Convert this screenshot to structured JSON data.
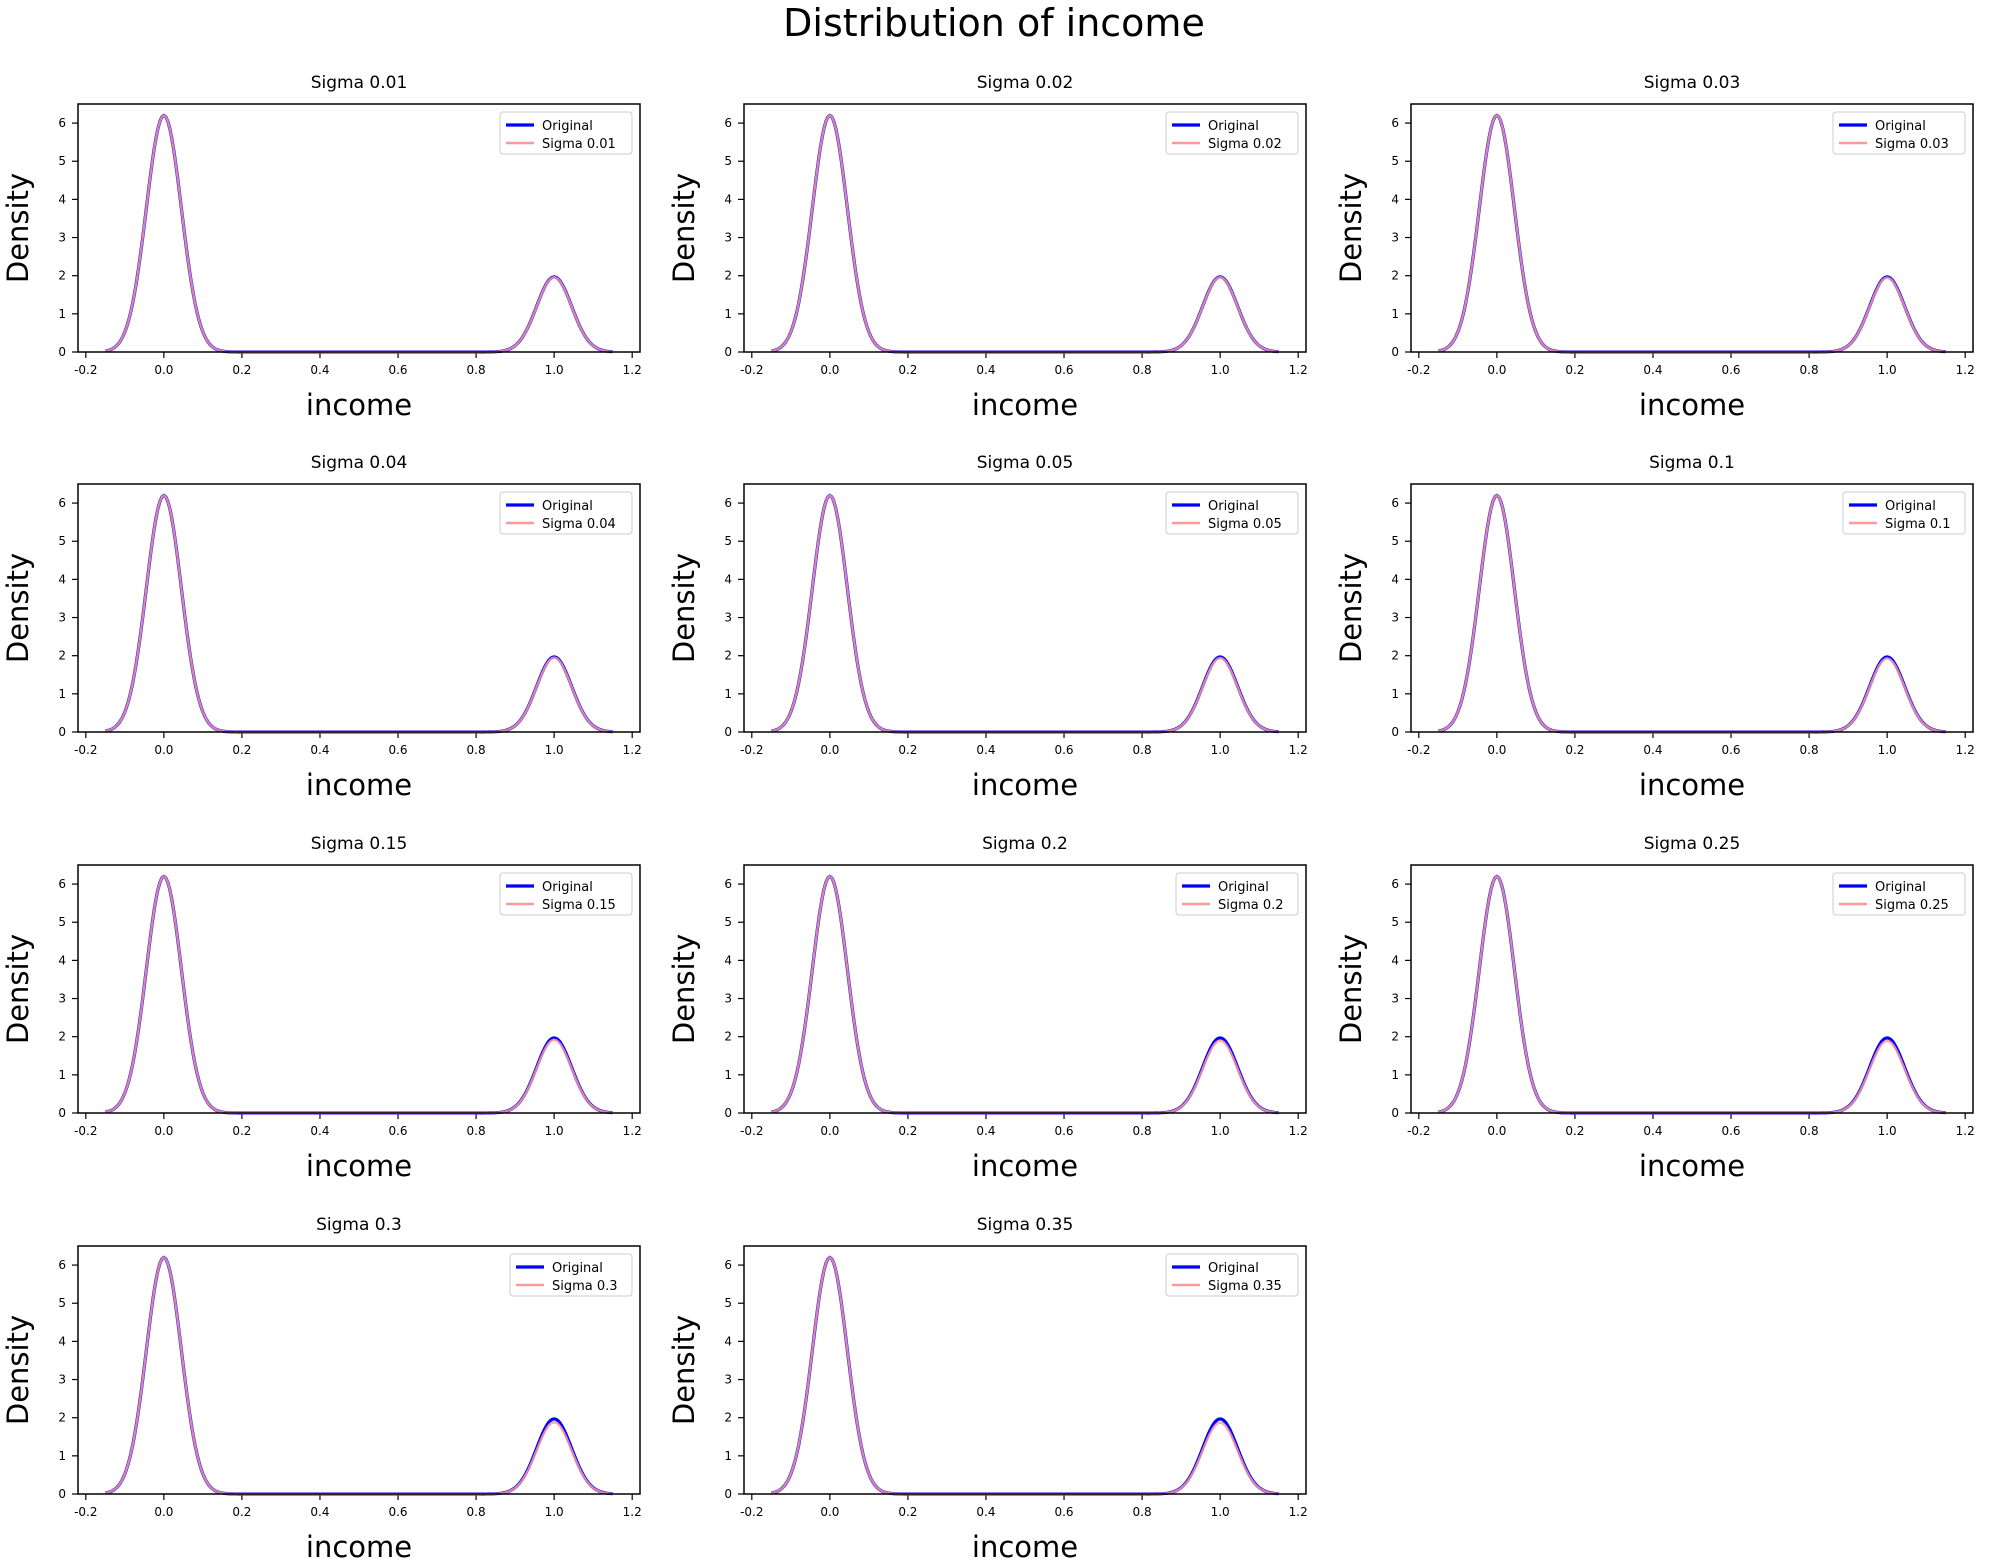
{
  "figure": {
    "suptitle": "Distribution of income"
  },
  "colors": {
    "original": "#0000ff",
    "noisy": "#ff9a9a",
    "frame": "#000000",
    "background": "#ffffff"
  },
  "chart_data": [
    {
      "type": "line",
      "title": "Sigma 0.01",
      "xlabel": "income",
      "ylabel": "Density",
      "xlim": [
        -0.22,
        1.22
      ],
      "ylim": [
        0,
        6.5
      ],
      "xticks": [
        "-0.2",
        "0.0",
        "0.2",
        "0.4",
        "0.6",
        "0.8",
        "1.0",
        "1.2"
      ],
      "yticks": [
        "0",
        "1",
        "2",
        "3",
        "4",
        "5",
        "6"
      ],
      "legend": {
        "position": "upper right",
        "entries": [
          "Original",
          "Sigma 0.01"
        ]
      },
      "series": [
        {
          "name": "Original",
          "peaks": [
            {
              "x": 0.0,
              "density": 6.2
            },
            {
              "x": 1.0,
              "density": 1.97
            }
          ],
          "x_range": [
            -0.15,
            1.15
          ]
        },
        {
          "name": "Sigma 0.01",
          "peaks": [
            {
              "x": 0.0,
              "density": 6.2
            },
            {
              "x": 1.0,
              "density": 1.96
            }
          ],
          "x_range": [
            -0.15,
            1.15
          ]
        }
      ]
    },
    {
      "type": "line",
      "title": "Sigma 0.02",
      "xlabel": "income",
      "ylabel": "Density",
      "xlim": [
        -0.22,
        1.22
      ],
      "ylim": [
        0,
        6.5
      ],
      "xticks": [
        "-0.2",
        "0.0",
        "0.2",
        "0.4",
        "0.6",
        "0.8",
        "1.0",
        "1.2"
      ],
      "yticks": [
        "0",
        "1",
        "2",
        "3",
        "4",
        "5",
        "6"
      ],
      "legend": {
        "position": "upper right",
        "entries": [
          "Original",
          "Sigma 0.02"
        ]
      },
      "series": [
        {
          "name": "Original",
          "peaks": [
            {
              "x": 0.0,
              "density": 6.2
            },
            {
              "x": 1.0,
              "density": 1.97
            }
          ],
          "x_range": [
            -0.15,
            1.15
          ]
        },
        {
          "name": "Sigma 0.02",
          "peaks": [
            {
              "x": 0.0,
              "density": 6.2
            },
            {
              "x": 1.0,
              "density": 1.96
            }
          ],
          "x_range": [
            -0.15,
            1.15
          ]
        }
      ]
    },
    {
      "type": "line",
      "title": "Sigma 0.03",
      "xlabel": "income",
      "ylabel": "Density",
      "xlim": [
        -0.22,
        1.22
      ],
      "ylim": [
        0,
        6.5
      ],
      "xticks": [
        "-0.2",
        "0.0",
        "0.2",
        "0.4",
        "0.6",
        "0.8",
        "1.0",
        "1.2"
      ],
      "yticks": [
        "0",
        "1",
        "2",
        "3",
        "4",
        "5",
        "6"
      ],
      "legend": {
        "position": "upper right",
        "entries": [
          "Original",
          "Sigma 0.03"
        ]
      },
      "series": [
        {
          "name": "Original",
          "peaks": [
            {
              "x": 0.0,
              "density": 6.2
            },
            {
              "x": 1.0,
              "density": 1.97
            }
          ],
          "x_range": [
            -0.15,
            1.15
          ]
        },
        {
          "name": "Sigma 0.03",
          "peaks": [
            {
              "x": 0.0,
              "density": 6.2
            },
            {
              "x": 1.0,
              "density": 1.95
            }
          ],
          "x_range": [
            -0.15,
            1.15
          ]
        }
      ]
    },
    {
      "type": "line",
      "title": "Sigma 0.04",
      "xlabel": "income",
      "ylabel": "Density",
      "xlim": [
        -0.22,
        1.22
      ],
      "ylim": [
        0,
        6.5
      ],
      "xticks": [
        "-0.2",
        "0.0",
        "0.2",
        "0.4",
        "0.6",
        "0.8",
        "1.0",
        "1.2"
      ],
      "yticks": [
        "0",
        "1",
        "2",
        "3",
        "4",
        "5",
        "6"
      ],
      "legend": {
        "position": "upper right",
        "entries": [
          "Original",
          "Sigma 0.04"
        ]
      },
      "series": [
        {
          "name": "Original",
          "peaks": [
            {
              "x": 0.0,
              "density": 6.2
            },
            {
              "x": 1.0,
              "density": 1.97
            }
          ],
          "x_range": [
            -0.15,
            1.15
          ]
        },
        {
          "name": "Sigma 0.04",
          "peaks": [
            {
              "x": 0.0,
              "density": 6.2
            },
            {
              "x": 1.0,
              "density": 1.95
            }
          ],
          "x_range": [
            -0.15,
            1.15
          ]
        }
      ]
    },
    {
      "type": "line",
      "title": "Sigma 0.05",
      "xlabel": "income",
      "ylabel": "Density",
      "xlim": [
        -0.22,
        1.22
      ],
      "ylim": [
        0,
        6.5
      ],
      "xticks": [
        "-0.2",
        "0.0",
        "0.2",
        "0.4",
        "0.6",
        "0.8",
        "1.0",
        "1.2"
      ],
      "yticks": [
        "0",
        "1",
        "2",
        "3",
        "4",
        "5",
        "6"
      ],
      "legend": {
        "position": "upper right",
        "entries": [
          "Original",
          "Sigma 0.05"
        ]
      },
      "series": [
        {
          "name": "Original",
          "peaks": [
            {
              "x": 0.0,
              "density": 6.2
            },
            {
              "x": 1.0,
              "density": 1.97
            }
          ],
          "x_range": [
            -0.15,
            1.15
          ]
        },
        {
          "name": "Sigma 0.05",
          "peaks": [
            {
              "x": 0.0,
              "density": 6.2
            },
            {
              "x": 1.0,
              "density": 1.94
            }
          ],
          "x_range": [
            -0.15,
            1.15
          ]
        }
      ]
    },
    {
      "type": "line",
      "title": "Sigma 0.1",
      "xlabel": "income",
      "ylabel": "Density",
      "xlim": [
        -0.22,
        1.22
      ],
      "ylim": [
        0,
        6.5
      ],
      "xticks": [
        "-0.2",
        "0.0",
        "0.2",
        "0.4",
        "0.6",
        "0.8",
        "1.0",
        "1.2"
      ],
      "yticks": [
        "0",
        "1",
        "2",
        "3",
        "4",
        "5",
        "6"
      ],
      "legend": {
        "position": "upper right",
        "entries": [
          "Original",
          "Sigma 0.1"
        ]
      },
      "series": [
        {
          "name": "Original",
          "peaks": [
            {
              "x": 0.0,
              "density": 6.2
            },
            {
              "x": 1.0,
              "density": 1.97
            }
          ],
          "x_range": [
            -0.15,
            1.15
          ]
        },
        {
          "name": "Sigma 0.1",
          "peaks": [
            {
              "x": 0.0,
              "density": 6.2
            },
            {
              "x": 1.0,
              "density": 1.93
            }
          ],
          "x_range": [
            -0.15,
            1.15
          ]
        }
      ]
    },
    {
      "type": "line",
      "title": "Sigma 0.15",
      "xlabel": "income",
      "ylabel": "Density",
      "xlim": [
        -0.22,
        1.22
      ],
      "ylim": [
        0,
        6.5
      ],
      "xticks": [
        "-0.2",
        "0.0",
        "0.2",
        "0.4",
        "0.6",
        "0.8",
        "1.0",
        "1.2"
      ],
      "yticks": [
        "0",
        "1",
        "2",
        "3",
        "4",
        "5",
        "6"
      ],
      "legend": {
        "position": "upper right",
        "entries": [
          "Original",
          "Sigma 0.15"
        ]
      },
      "series": [
        {
          "name": "Original",
          "peaks": [
            {
              "x": 0.0,
              "density": 6.2
            },
            {
              "x": 1.0,
              "density": 1.97
            }
          ],
          "x_range": [
            -0.15,
            1.15
          ]
        },
        {
          "name": "Sigma 0.15",
          "peaks": [
            {
              "x": 0.0,
              "density": 6.2
            },
            {
              "x": 1.0,
              "density": 1.92
            }
          ],
          "x_range": [
            -0.15,
            1.15
          ]
        }
      ]
    },
    {
      "type": "line",
      "title": "Sigma 0.2",
      "xlabel": "income",
      "ylabel": "Density",
      "xlim": [
        -0.22,
        1.22
      ],
      "ylim": [
        0,
        6.5
      ],
      "xticks": [
        "-0.2",
        "0.0",
        "0.2",
        "0.4",
        "0.6",
        "0.8",
        "1.0",
        "1.2"
      ],
      "yticks": [
        "0",
        "1",
        "2",
        "3",
        "4",
        "5",
        "6"
      ],
      "legend": {
        "position": "upper right",
        "entries": [
          "Original",
          "Sigma 0.2"
        ]
      },
      "series": [
        {
          "name": "Original",
          "peaks": [
            {
              "x": 0.0,
              "density": 6.2
            },
            {
              "x": 1.0,
              "density": 1.97
            }
          ],
          "x_range": [
            -0.15,
            1.15
          ]
        },
        {
          "name": "Sigma 0.2",
          "peaks": [
            {
              "x": 0.0,
              "density": 6.2
            },
            {
              "x": 1.0,
              "density": 1.9
            }
          ],
          "x_range": [
            -0.15,
            1.15
          ]
        }
      ]
    },
    {
      "type": "line",
      "title": "Sigma 0.25",
      "xlabel": "income",
      "ylabel": "Density",
      "xlim": [
        -0.22,
        1.22
      ],
      "ylim": [
        0,
        6.5
      ],
      "xticks": [
        "-0.2",
        "0.0",
        "0.2",
        "0.4",
        "0.6",
        "0.8",
        "1.0",
        "1.2"
      ],
      "yticks": [
        "0",
        "1",
        "2",
        "3",
        "4",
        "5",
        "6"
      ],
      "legend": {
        "position": "upper right",
        "entries": [
          "Original",
          "Sigma 0.25"
        ]
      },
      "series": [
        {
          "name": "Original",
          "peaks": [
            {
              "x": 0.0,
              "density": 6.2
            },
            {
              "x": 1.0,
              "density": 1.97
            }
          ],
          "x_range": [
            -0.15,
            1.15
          ]
        },
        {
          "name": "Sigma 0.25",
          "peaks": [
            {
              "x": 0.0,
              "density": 6.2
            },
            {
              "x": 1.0,
              "density": 1.89
            }
          ],
          "x_range": [
            -0.15,
            1.15
          ]
        }
      ]
    },
    {
      "type": "line",
      "title": "Sigma 0.3",
      "xlabel": "income",
      "ylabel": "Density",
      "xlim": [
        -0.22,
        1.22
      ],
      "ylim": [
        0,
        6.5
      ],
      "xticks": [
        "-0.2",
        "0.0",
        "0.2",
        "0.4",
        "0.6",
        "0.8",
        "1.0",
        "1.2"
      ],
      "yticks": [
        "0",
        "1",
        "2",
        "3",
        "4",
        "5",
        "6"
      ],
      "legend": {
        "position": "upper right",
        "entries": [
          "Original",
          "Sigma 0.3"
        ]
      },
      "series": [
        {
          "name": "Original",
          "peaks": [
            {
              "x": 0.0,
              "density": 6.2
            },
            {
              "x": 1.0,
              "density": 1.97
            }
          ],
          "x_range": [
            -0.15,
            1.15
          ]
        },
        {
          "name": "Sigma 0.3",
          "peaks": [
            {
              "x": 0.0,
              "density": 6.2
            },
            {
              "x": 1.0,
              "density": 1.88
            }
          ],
          "x_range": [
            -0.15,
            1.15
          ]
        }
      ]
    },
    {
      "type": "line",
      "title": "Sigma 0.35",
      "xlabel": "income",
      "ylabel": "Density",
      "xlim": [
        -0.22,
        1.22
      ],
      "ylim": [
        0,
        6.5
      ],
      "xticks": [
        "-0.2",
        "0.0",
        "0.2",
        "0.4",
        "0.6",
        "0.8",
        "1.0",
        "1.2"
      ],
      "yticks": [
        "0",
        "1",
        "2",
        "3",
        "4",
        "5",
        "6"
      ],
      "legend": {
        "position": "upper right",
        "entries": [
          "Original",
          "Sigma 0.35"
        ]
      },
      "series": [
        {
          "name": "Original",
          "peaks": [
            {
              "x": 0.0,
              "density": 6.2
            },
            {
              "x": 1.0,
              "density": 1.97
            }
          ],
          "x_range": [
            -0.15,
            1.15
          ]
        },
        {
          "name": "Sigma 0.35",
          "peaks": [
            {
              "x": 0.0,
              "density": 6.2
            },
            {
              "x": 1.0,
              "density": 1.87
            }
          ],
          "x_range": [
            -0.15,
            1.15
          ]
        }
      ]
    }
  ]
}
